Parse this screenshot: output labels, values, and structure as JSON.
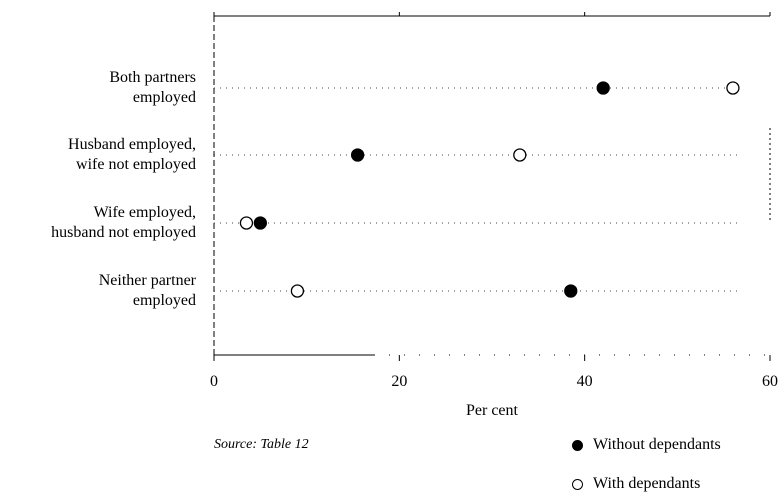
{
  "chart_data": {
    "type": "scatter",
    "xlabel": "Per cent",
    "xlim": [
      0,
      60
    ],
    "xticks": [
      "0",
      "20",
      "40",
      "60"
    ],
    "xtick_values": [
      0,
      20,
      40,
      60
    ],
    "categories": [
      [
        "Both partners",
        "employed"
      ],
      [
        "Husband employed,",
        "wife not employed"
      ],
      [
        "Wife employed,",
        "husband not employed"
      ],
      [
        "Neither partner",
        "employed"
      ]
    ],
    "series": [
      {
        "name": "Without dependants",
        "marker": "filled",
        "values": [
          42,
          15.5,
          5,
          38.5
        ]
      },
      {
        "name": "With dependants",
        "marker": "open",
        "values": [
          56,
          33,
          3.5,
          9
        ]
      }
    ],
    "grid": "dotted",
    "legend_position": "bottom-right"
  },
  "source": "Source:  Table 12",
  "legend": {
    "without": "Without dependants",
    "with": "With dependants"
  }
}
